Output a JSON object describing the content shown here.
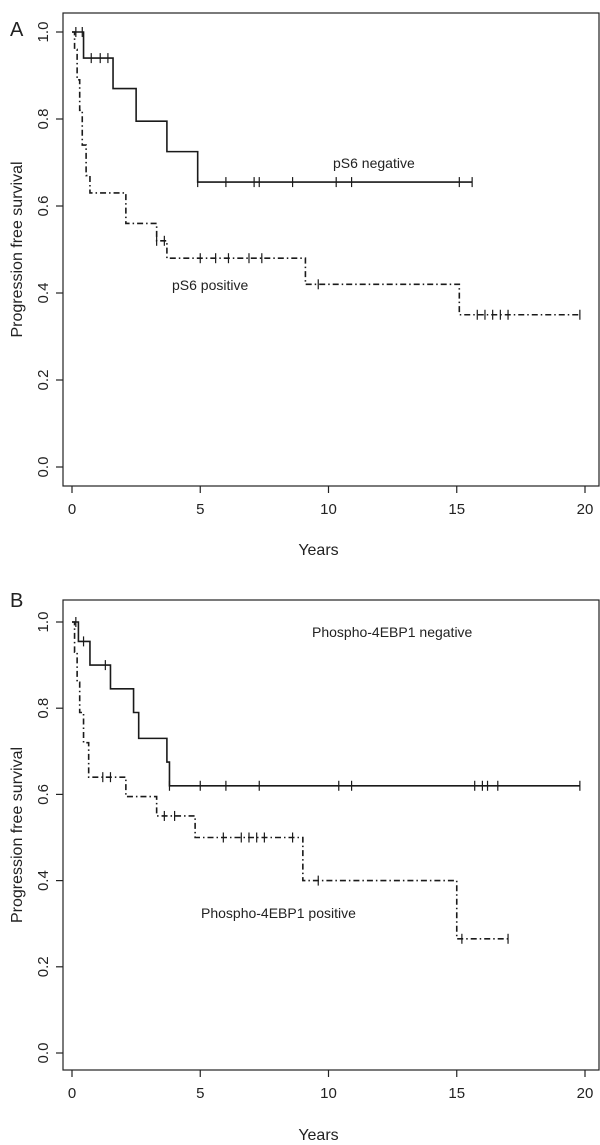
{
  "chart_data": [
    {
      "type": "line",
      "panel_label": "A",
      "xlabel": "Years",
      "ylabel": "Progression free survival",
      "xlim": [
        0,
        20
      ],
      "ylim": [
        0,
        1
      ],
      "xticks": [
        "0",
        "5",
        "10",
        "15",
        "20"
      ],
      "yticks": [
        "0.0",
        "0.2",
        "0.4",
        "0.6",
        "0.8",
        "1.0"
      ],
      "grid": false,
      "series": [
        {
          "name": "pS6 negative",
          "style": "solid",
          "steps": [
            [
              0,
              1.0
            ],
            [
              0.45,
              0.94
            ],
            [
              1.6,
              0.87
            ],
            [
              2.5,
              0.795
            ],
            [
              3.7,
              0.725
            ],
            [
              4.9,
              0.655
            ],
            [
              15.6,
              0.655
            ]
          ],
          "censored": [
            [
              0.15,
              1.0
            ],
            [
              0.4,
              1.0
            ],
            [
              0.75,
              0.94
            ],
            [
              1.1,
              0.94
            ],
            [
              1.4,
              0.94
            ],
            [
              4.9,
              0.655
            ],
            [
              6.0,
              0.655
            ],
            [
              7.1,
              0.655
            ],
            [
              7.3,
              0.655
            ],
            [
              8.6,
              0.655
            ],
            [
              10.3,
              0.655
            ],
            [
              10.9,
              0.655
            ],
            [
              15.1,
              0.655
            ],
            [
              15.6,
              0.655
            ]
          ]
        },
        {
          "name": "pS6 positive",
          "style": "dashdot",
          "steps": [
            [
              0,
              1.0
            ],
            [
              0.1,
              0.96
            ],
            [
              0.2,
              0.89
            ],
            [
              0.3,
              0.82
            ],
            [
              0.4,
              0.74
            ],
            [
              0.55,
              0.67
            ],
            [
              0.7,
              0.63
            ],
            [
              2.1,
              0.56
            ],
            [
              3.3,
              0.52
            ],
            [
              3.7,
              0.48
            ],
            [
              9.1,
              0.42
            ],
            [
              15.1,
              0.35
            ],
            [
              19.8,
              0.35
            ]
          ],
          "censored": [
            [
              3.3,
              0.52
            ],
            [
              3.6,
              0.52
            ],
            [
              5.0,
              0.48
            ],
            [
              5.6,
              0.48
            ],
            [
              6.1,
              0.48
            ],
            [
              6.9,
              0.48
            ],
            [
              7.4,
              0.48
            ],
            [
              9.6,
              0.42
            ],
            [
              15.8,
              0.35
            ],
            [
              16.1,
              0.35
            ],
            [
              16.4,
              0.35
            ],
            [
              16.7,
              0.35
            ],
            [
              17.0,
              0.35
            ],
            [
              19.8,
              0.35
            ]
          ]
        }
      ],
      "annotations": [
        "pS6 negative",
        "pS6 positive"
      ]
    },
    {
      "type": "line",
      "panel_label": "B",
      "xlabel": "Years",
      "ylabel": "Progression free survival",
      "xlim": [
        0,
        20
      ],
      "ylim": [
        0,
        1
      ],
      "xticks": [
        "0",
        "5",
        "10",
        "15",
        "20"
      ],
      "yticks": [
        "0.0",
        "0.2",
        "0.4",
        "0.6",
        "0.8",
        "1.0"
      ],
      "grid": false,
      "series": [
        {
          "name": "Phospho-4EBP1 negative",
          "style": "solid",
          "steps": [
            [
              0,
              1.0
            ],
            [
              0.25,
              0.955
            ],
            [
              0.7,
              0.9
            ],
            [
              1.5,
              0.845
            ],
            [
              2.4,
              0.79
            ],
            [
              2.6,
              0.73
            ],
            [
              3.7,
              0.675
            ],
            [
              3.8,
              0.62
            ],
            [
              19.8,
              0.62
            ]
          ],
          "censored": [
            [
              0.15,
              1.0
            ],
            [
              0.45,
              0.955
            ],
            [
              1.3,
              0.9
            ],
            [
              3.8,
              0.62
            ],
            [
              5.0,
              0.62
            ],
            [
              6.0,
              0.62
            ],
            [
              7.3,
              0.62
            ],
            [
              10.4,
              0.62
            ],
            [
              10.9,
              0.62
            ],
            [
              15.7,
              0.62
            ],
            [
              16.0,
              0.62
            ],
            [
              16.2,
              0.62
            ],
            [
              16.6,
              0.62
            ],
            [
              19.8,
              0.62
            ]
          ]
        },
        {
          "name": "Phospho-4EBP1 positive",
          "style": "dashdot",
          "steps": [
            [
              0,
              1.0
            ],
            [
              0.1,
              0.93
            ],
            [
              0.2,
              0.86
            ],
            [
              0.3,
              0.79
            ],
            [
              0.45,
              0.72
            ],
            [
              0.65,
              0.64
            ],
            [
              2.1,
              0.595
            ],
            [
              3.3,
              0.55
            ],
            [
              4.8,
              0.5
            ],
            [
              9.0,
              0.4
            ],
            [
              15.0,
              0.265
            ],
            [
              17.0,
              0.265
            ]
          ],
          "censored": [
            [
              1.2,
              0.64
            ],
            [
              1.5,
              0.64
            ],
            [
              3.6,
              0.55
            ],
            [
              4.0,
              0.55
            ],
            [
              5.9,
              0.5
            ],
            [
              6.6,
              0.5
            ],
            [
              6.9,
              0.5
            ],
            [
              7.2,
              0.5
            ],
            [
              7.5,
              0.5
            ],
            [
              8.6,
              0.5
            ],
            [
              9.6,
              0.4
            ],
            [
              15.2,
              0.265
            ],
            [
              17.0,
              0.265
            ]
          ]
        }
      ],
      "annotations": [
        "Phospho-4EBP1 negative",
        "Phospho-4EBP1 positive"
      ]
    }
  ]
}
